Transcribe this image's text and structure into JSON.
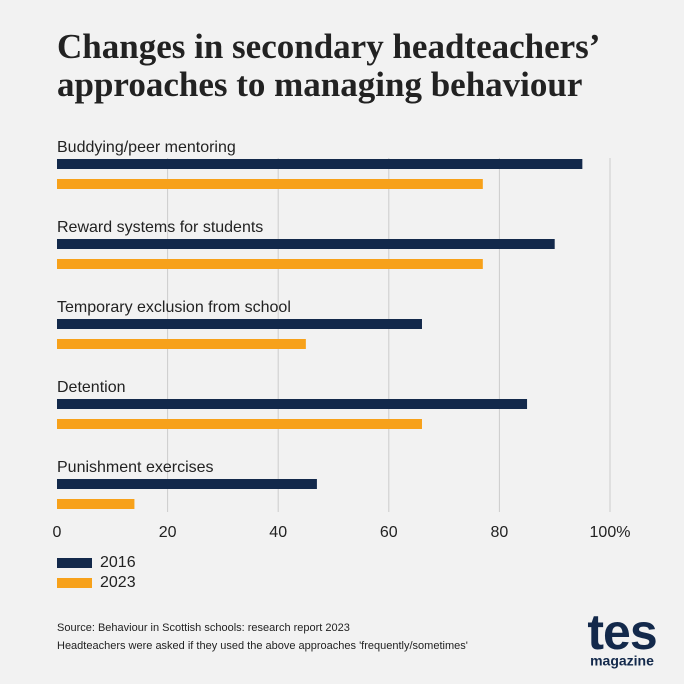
{
  "chart_data": {
    "type": "bar",
    "orientation": "horizontal",
    "title": [
      "Changes in secondary headteachers’",
      "approaches to managing behaviour"
    ],
    "categories": [
      "Buddying/peer mentoring",
      "Reward systems for students",
      "Temporary exclusion from school",
      "Detention",
      "Punishment exercises"
    ],
    "series": [
      {
        "name": "2016",
        "color": "#13294b",
        "values": [
          95,
          90,
          66,
          85,
          47
        ]
      },
      {
        "name": "2023",
        "color": "#f7a11a",
        "values": [
          77,
          77,
          45,
          66,
          14
        ]
      }
    ],
    "xlim": [
      0,
      100
    ],
    "xticks": [
      0,
      20,
      40,
      60,
      80,
      {
        "value": 100,
        "label": "100%"
      }
    ],
    "grid": true,
    "source": "Source: Behaviour in Scottish schools: research report 2023",
    "note": "Headteachers were asked if they used the above approaches 'frequently/sometimes'"
  },
  "logo": {
    "name": "tes",
    "tagline": "magazine"
  }
}
